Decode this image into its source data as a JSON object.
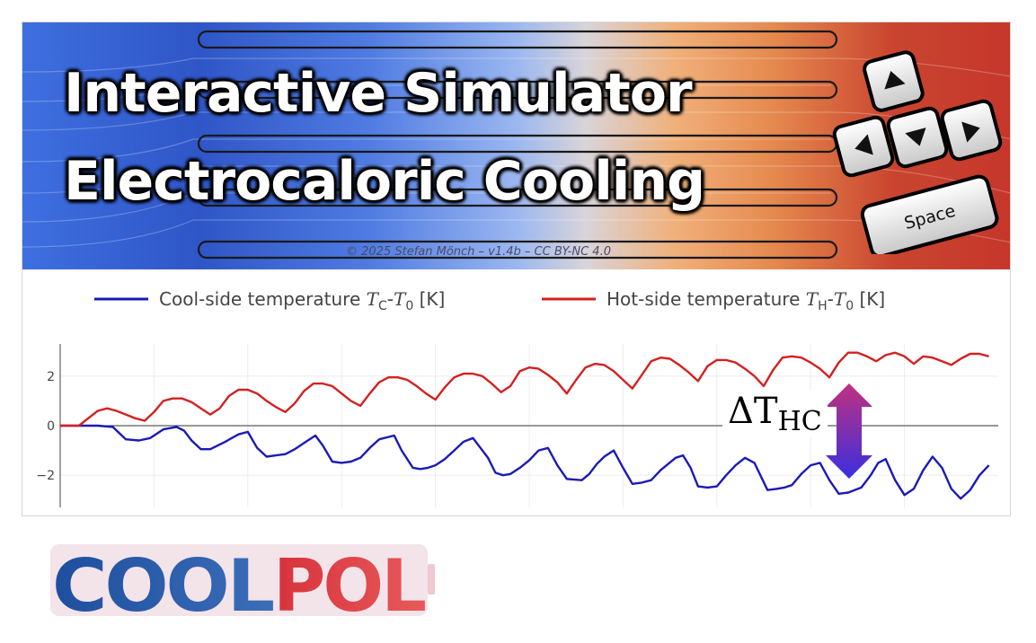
{
  "banner": {
    "title_line1": "Interactive Simulator",
    "title_line2": "Electrocaloric Cooling",
    "copyright": "© 2025 Stefan Mönch – v1.4b – CC BY-NC 4.0",
    "key_space_label": "Space",
    "key_icons": [
      "arrow-up-key-icon",
      "arrow-left-key-icon",
      "arrow-down-key-icon",
      "arrow-right-key-icon"
    ],
    "gradient_colors": [
      "#3e6fe0",
      "#9bb7f0",
      "#d9d4d9",
      "#e5894e",
      "#c6362b"
    ]
  },
  "annotation": {
    "delta_symbol": "ΔT",
    "delta_subscript": "HC",
    "arrow_colors": [
      "#c0307e",
      "#3a2fe0"
    ]
  },
  "logo": {
    "part1": "COOL",
    "part2": "POL",
    "color1": "#1d4f9e",
    "color2": "#d8323c"
  },
  "chart_data": {
    "type": "line",
    "legend_position": "top",
    "xlim": [
      0,
      500
    ],
    "ylim": [
      -3.3,
      3.3
    ],
    "xticks": [
      0,
      50,
      100,
      150,
      200,
      250,
      300,
      350,
      400,
      450
    ],
    "yticks": [
      -2,
      0,
      2
    ],
    "ytick_labels": [
      "−2",
      "0",
      "2"
    ],
    "zero_line": true,
    "grid": true,
    "series": [
      {
        "name": "Cool-side temperature T_C-T_0 [K]",
        "legend_main": "Cool-side temperature ",
        "legend_var": "T",
        "legend_sub": "C",
        "legend_sep": "-",
        "legend_var2": "T",
        "legend_sub2": "0",
        "legend_unit": " [K]",
        "color": "#1a1ab8",
        "x": [
          0,
          10,
          20,
          28,
          35,
          42,
          48,
          55,
          62,
          66,
          70,
          75,
          80,
          88,
          95,
          100,
          105,
          110,
          115,
          120,
          125,
          130,
          136,
          140,
          145,
          150,
          155,
          160,
          165,
          170,
          178,
          182,
          188,
          192,
          196,
          200,
          205,
          210,
          215,
          220,
          228,
          232,
          236,
          240,
          245,
          250,
          255,
          260,
          265,
          270,
          278,
          282,
          286,
          290,
          295,
          300,
          305,
          310,
          315,
          320,
          328,
          332,
          336,
          340,
          345,
          350,
          355,
          360,
          365,
          370,
          377,
          382,
          386,
          390,
          395,
          400,
          405,
          410,
          415,
          420,
          427,
          432,
          436,
          440,
          445,
          450,
          455,
          460,
          465,
          470,
          475,
          480,
          485,
          490,
          495
        ],
        "y": [
          0,
          0,
          0,
          -0.05,
          -0.55,
          -0.6,
          -0.5,
          -0.15,
          -0.05,
          -0.2,
          -0.6,
          -0.95,
          -0.95,
          -0.65,
          -0.35,
          -0.25,
          -0.9,
          -1.25,
          -1.2,
          -1.15,
          -0.95,
          -0.7,
          -0.4,
          -0.8,
          -1.45,
          -1.5,
          -1.45,
          -1.3,
          -0.9,
          -0.55,
          -0.4,
          -1.0,
          -1.7,
          -1.75,
          -1.7,
          -1.6,
          -1.35,
          -1.0,
          -0.65,
          -0.5,
          -1.3,
          -1.9,
          -2.0,
          -1.95,
          -1.7,
          -1.4,
          -1.0,
          -0.9,
          -1.6,
          -2.15,
          -2.2,
          -1.95,
          -1.55,
          -1.25,
          -1.0,
          -1.7,
          -2.35,
          -2.3,
          -2.2,
          -1.8,
          -1.3,
          -1.2,
          -1.7,
          -2.45,
          -2.5,
          -2.45,
          -2.0,
          -1.6,
          -1.3,
          -1.5,
          -2.6,
          -2.55,
          -2.5,
          -2.4,
          -1.95,
          -1.6,
          -1.5,
          -2.2,
          -2.75,
          -2.7,
          -2.5,
          -2.0,
          -1.5,
          -1.35,
          -2.2,
          -2.8,
          -2.55,
          -1.8,
          -1.25,
          -1.7,
          -2.55,
          -2.95,
          -2.6,
          -2.0,
          -1.6
        ]
      },
      {
        "name": "Hot-side temperature T_H-T_0 [K]",
        "legend_main": "Hot-side temperature ",
        "legend_var": "T",
        "legend_sub": "H",
        "legend_sep": "-",
        "legend_var2": "T",
        "legend_sub2": "0",
        "legend_unit": " [K]",
        "color": "#d42020",
        "x": [
          0,
          10,
          15,
          20,
          25,
          30,
          35,
          40,
          45,
          50,
          55,
          60,
          65,
          70,
          75,
          80,
          85,
          90,
          95,
          100,
          105,
          110,
          115,
          120,
          125,
          130,
          135,
          140,
          145,
          150,
          155,
          160,
          165,
          170,
          175,
          180,
          185,
          190,
          195,
          200,
          205,
          210,
          215,
          220,
          225,
          230,
          235,
          240,
          245,
          250,
          255,
          260,
          265,
          270,
          275,
          280,
          285,
          290,
          295,
          300,
          305,
          310,
          315,
          320,
          325,
          330,
          335,
          340,
          345,
          350,
          355,
          360,
          365,
          370,
          375,
          380,
          385,
          390,
          395,
          400,
          405,
          410,
          415,
          420,
          425,
          430,
          435,
          440,
          445,
          450,
          455,
          460,
          465,
          470,
          475,
          480,
          485,
          490,
          495
        ],
        "y": [
          0,
          0,
          0.3,
          0.6,
          0.7,
          0.6,
          0.45,
          0.3,
          0.2,
          0.55,
          1.0,
          1.1,
          1.1,
          0.95,
          0.7,
          0.45,
          0.7,
          1.2,
          1.45,
          1.45,
          1.3,
          1.0,
          0.75,
          0.55,
          0.9,
          1.4,
          1.7,
          1.7,
          1.6,
          1.3,
          1.0,
          0.8,
          1.3,
          1.75,
          1.95,
          1.95,
          1.85,
          1.6,
          1.3,
          1.05,
          1.55,
          1.95,
          2.1,
          2.1,
          2.0,
          1.7,
          1.35,
          1.6,
          2.2,
          2.35,
          2.3,
          2.05,
          1.75,
          1.3,
          1.85,
          2.35,
          2.5,
          2.45,
          2.2,
          1.85,
          1.5,
          2.05,
          2.6,
          2.75,
          2.7,
          2.45,
          2.15,
          1.8,
          2.4,
          2.65,
          2.65,
          2.55,
          2.3,
          2.0,
          1.6,
          2.25,
          2.75,
          2.8,
          2.75,
          2.55,
          2.3,
          1.95,
          2.55,
          2.95,
          2.95,
          2.8,
          2.6,
          2.85,
          2.95,
          2.8,
          2.5,
          2.8,
          2.75,
          2.6,
          2.45,
          2.7,
          2.9,
          2.9,
          2.8
        ]
      }
    ]
  }
}
